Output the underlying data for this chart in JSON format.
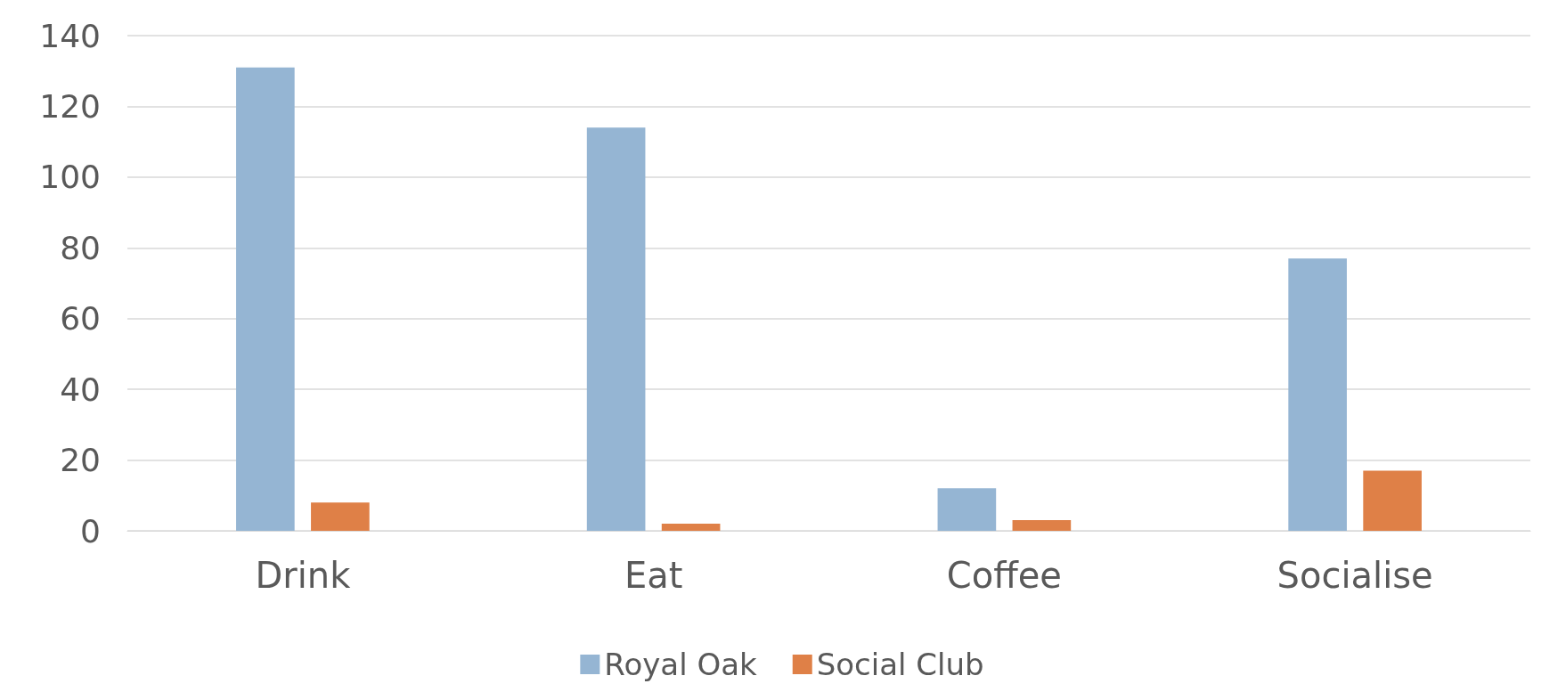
{
  "chart_data": {
    "type": "bar",
    "categories": [
      "Drink",
      "Eat",
      "Coffee",
      "Socialise"
    ],
    "series": [
      {
        "name": "Royal Oak",
        "color": "#95b5d3",
        "values": [
          131,
          114,
          12,
          77
        ]
      },
      {
        "name": "Social Club",
        "color": "#df8047",
        "values": [
          8,
          2,
          3,
          17
        ]
      }
    ],
    "ylim": [
      0,
      140
    ],
    "yticks": [
      0,
      20,
      40,
      60,
      80,
      100,
      120,
      140
    ],
    "grid": "y",
    "legend": "bottom"
  }
}
